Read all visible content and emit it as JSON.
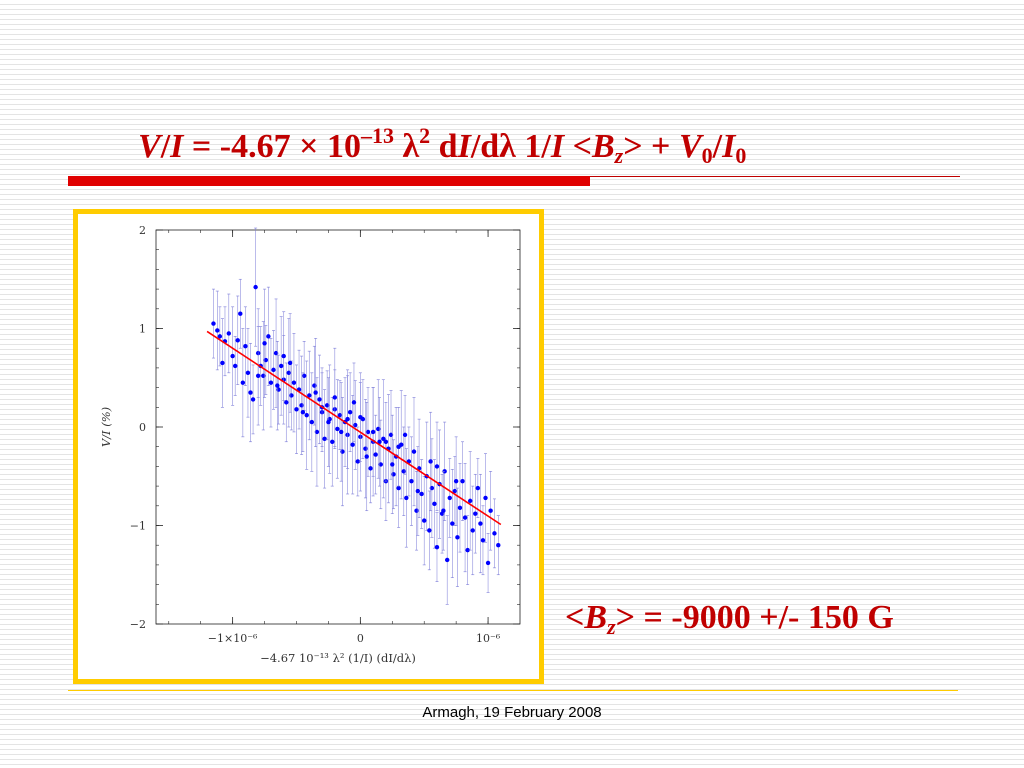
{
  "slide": {
    "title": {
      "V": "V",
      "slash1": "/",
      "I": "I",
      "eq": " = -4.67 ",
      "times": "×",
      "ten": " 10",
      "exp": "–13",
      "lambda": "  λ",
      "two": "2",
      "d": " d",
      "I2": "I",
      "dlam": "/dλ  1/",
      "I3": "I",
      "lt": "  <",
      "B": "B",
      "z": "z",
      "gt": "> + ",
      "V0": "V",
      "zero": "0",
      "slash2": "/",
      "I0": "I",
      "zero2": "0"
    },
    "result": {
      "lt": "<",
      "B": "B",
      "z": "z",
      "rest": "> = -9000 +/- 150 G"
    },
    "footer": "Armagh, 19 February 2008",
    "colors": {
      "title": "#c00000",
      "frame": "#ffcc00",
      "points": "#0000ff",
      "fit_line": "#ff0000"
    }
  },
  "chart_data": {
    "type": "scatter",
    "title": "",
    "xlabel": "−4.67  10⁻¹³  λ²  (1/I)  (dI/dλ)",
    "ylabel": "V/I (%)",
    "xlim": [
      -1.6e-06,
      1.25e-06
    ],
    "ylim": [
      -2,
      2
    ],
    "xticks": [
      {
        "value": -1e-06,
        "label": "−1×10⁻⁶"
      },
      {
        "value": 0,
        "label": "0"
      },
      {
        "value": 1e-06,
        "label": "10⁻⁶"
      }
    ],
    "yticks": [
      {
        "value": -2,
        "label": "−2"
      },
      {
        "value": -1,
        "label": "−1"
      },
      {
        "value": 0,
        "label": "0"
      },
      {
        "value": 1,
        "label": "1"
      },
      {
        "value": 2,
        "label": "2"
      }
    ],
    "fit_line": {
      "x": [
        -1.2e-06,
        1.1e-06
      ],
      "y": [
        0.97,
        -0.99
      ]
    },
    "series": [
      {
        "x": [
          -1.15e-06,
          -1.12e-06,
          -1.1e-06,
          -1.08e-06,
          -1.06e-06,
          -1.03e-06,
          -1e-06,
          -9.8e-07,
          -9.6e-07,
          -9.4e-07,
          -9.2e-07,
          -9e-07,
          -8.8e-07,
          -8.6e-07,
          -8.4e-07,
          -8.2e-07,
          -8e-07,
          -7.8e-07,
          -7.6e-07,
          -7.4e-07,
          -7.2e-07,
          -7e-07,
          -6.8e-07,
          -6.6e-07,
          -6.4e-07,
          -6.2e-07,
          -6e-07,
          -5.8e-07,
          -5.6e-07,
          -5.4e-07,
          -5.2e-07,
          -5e-07,
          -4.8e-07,
          -4.6e-07,
          -4.4e-07,
          -4.2e-07,
          -4e-07,
          -3.8e-07,
          -3.6e-07,
          -3.4e-07,
          -3.2e-07,
          -3e-07,
          -2.8e-07,
          -2.6e-07,
          -2.4e-07,
          -2.2e-07,
          -2e-07,
          -1.8e-07,
          -1.6e-07,
          -1.4e-07,
          -1.2e-07,
          -1e-07,
          -8e-08,
          -6e-08,
          -4e-08,
          -2e-08,
          0.0,
          2e-08,
          4e-08,
          6e-08,
          8e-08,
          1e-07,
          1.2e-07,
          1.4e-07,
          1.6e-07,
          1.8e-07,
          2e-07,
          2.2e-07,
          2.4e-07,
          2.6e-07,
          2.8e-07,
          3e-07,
          3.2e-07,
          3.4e-07,
          3.6e-07,
          3.8e-07,
          4e-07,
          4.2e-07,
          4.4e-07,
          4.6e-07,
          4.8e-07,
          5e-07,
          5.2e-07,
          5.4e-07,
          5.6e-07,
          5.8e-07,
          6e-07,
          6.2e-07,
          6.4e-07,
          6.6e-07,
          6.8e-07,
          7e-07,
          7.2e-07,
          7.4e-07,
          7.6e-07,
          7.8e-07,
          8e-07,
          8.2e-07,
          8.4e-07,
          8.6e-07,
          8.8e-07,
          9e-07,
          9.2e-07,
          9.4e-07,
          9.6e-07,
          9.8e-07,
          1e-06,
          1.02e-06,
          1.05e-06,
          1.08e-06,
          -7.5e-07,
          -6.5e-07,
          -5.5e-07,
          -4.5e-07,
          -3.5e-07,
          -2.5e-07,
          -1.5e-07,
          -5e-08,
          5e-08,
          1.5e-07,
          2.5e-07,
          3.5e-07,
          4.5e-07,
          5.5e-07,
          6.5e-07,
          7.5e-07,
          -3e-07,
          -1e-07,
          1e-07,
          3e-07,
          -2e-07,
          0.0,
          2e-07,
          -6e-07,
          -8e-07,
          6e-07
        ],
        "y": [
          1.05,
          0.98,
          0.92,
          0.65,
          0.87,
          0.95,
          0.72,
          0.62,
          0.88,
          1.15,
          0.45,
          0.82,
          0.55,
          0.35,
          0.28,
          1.42,
          0.75,
          0.62,
          0.52,
          0.68,
          0.92,
          0.45,
          0.58,
          0.75,
          0.38,
          0.62,
          0.48,
          0.25,
          0.55,
          0.32,
          0.45,
          0.18,
          0.38,
          0.22,
          0.52,
          0.12,
          0.32,
          0.05,
          0.42,
          -0.05,
          0.28,
          0.15,
          -0.12,
          0.22,
          0.08,
          -0.15,
          0.18,
          -0.02,
          0.12,
          -0.25,
          0.05,
          -0.08,
          0.15,
          -0.18,
          0.02,
          -0.35,
          -0.1,
          0.08,
          -0.22,
          -0.05,
          -0.42,
          -0.15,
          -0.28,
          -0.02,
          -0.38,
          -0.12,
          -0.55,
          -0.22,
          -0.08,
          -0.48,
          -0.3,
          -0.62,
          -0.18,
          -0.45,
          -0.72,
          -0.35,
          -0.55,
          -0.25,
          -0.85,
          -0.42,
          -0.68,
          -0.95,
          -0.5,
          -1.05,
          -0.62,
          -0.78,
          -1.22,
          -0.58,
          -0.88,
          -0.45,
          -1.35,
          -0.72,
          -0.98,
          -0.65,
          -1.12,
          -0.82,
          -0.55,
          -0.92,
          -1.25,
          -0.75,
          -1.05,
          -0.88,
          -0.62,
          -0.98,
          -1.15,
          -0.72,
          -1.38,
          -0.85,
          -1.08,
          -1.2,
          0.85,
          0.42,
          0.65,
          0.15,
          0.35,
          0.05,
          -0.05,
          0.25,
          -0.3,
          -0.15,
          -0.38,
          -0.08,
          -0.65,
          -0.35,
          -0.85,
          -0.55,
          0.2,
          0.08,
          -0.05,
          -0.2,
          0.3,
          0.1,
          -0.15,
          0.72,
          0.52,
          -0.4
        ],
        "err": [
          0.35,
          0.4,
          0.3,
          0.45,
          0.35,
          0.4,
          0.5,
          0.3,
          0.45,
          0.35,
          0.55,
          0.4,
          0.45,
          0.5,
          0.35,
          0.6,
          0.45,
          0.4,
          0.55,
          0.35,
          0.5,
          0.45,
          0.4,
          0.55,
          0.35,
          0.5,
          0.45,
          0.4,
          0.55,
          0.35,
          0.5,
          0.45,
          0.4,
          0.5,
          0.35,
          0.55,
          0.45,
          0.5,
          0.4,
          0.55,
          0.45,
          0.4,
          0.5,
          0.35,
          0.55,
          0.45,
          0.4,
          0.5,
          0.35,
          0.55,
          0.45,
          0.6,
          0.4,
          0.5,
          0.45,
          0.35,
          0.55,
          0.4,
          0.5,
          0.45,
          0.35,
          0.55,
          0.4,
          0.5,
          0.45,
          0.6,
          0.4,
          0.55,
          0.45,
          0.35,
          0.5,
          0.4,
          0.55,
          0.45,
          0.5,
          0.35,
          0.45,
          0.55,
          0.4,
          0.5,
          0.35,
          0.45,
          0.55,
          0.4,
          0.5,
          0.45,
          0.35,
          0.55,
          0.4,
          0.5,
          0.45,
          0.4,
          0.55,
          0.35,
          0.5,
          0.45,
          0.4,
          0.55,
          0.35,
          0.5,
          0.45,
          0.4,
          0.3,
          0.5,
          0.35,
          0.45,
          0.3,
          0.4,
          0.35,
          0.3,
          0.55,
          0.45,
          0.5,
          0.4,
          0.55,
          0.45,
          0.5,
          0.4,
          0.55,
          0.45,
          0.5,
          0.4,
          0.45,
          0.5,
          0.4,
          0.45,
          0.4,
          0.5,
          0.45,
          0.4,
          0.5,
          0.45,
          0.4,
          0.45,
          0.5,
          0.45
        ]
      }
    ]
  }
}
